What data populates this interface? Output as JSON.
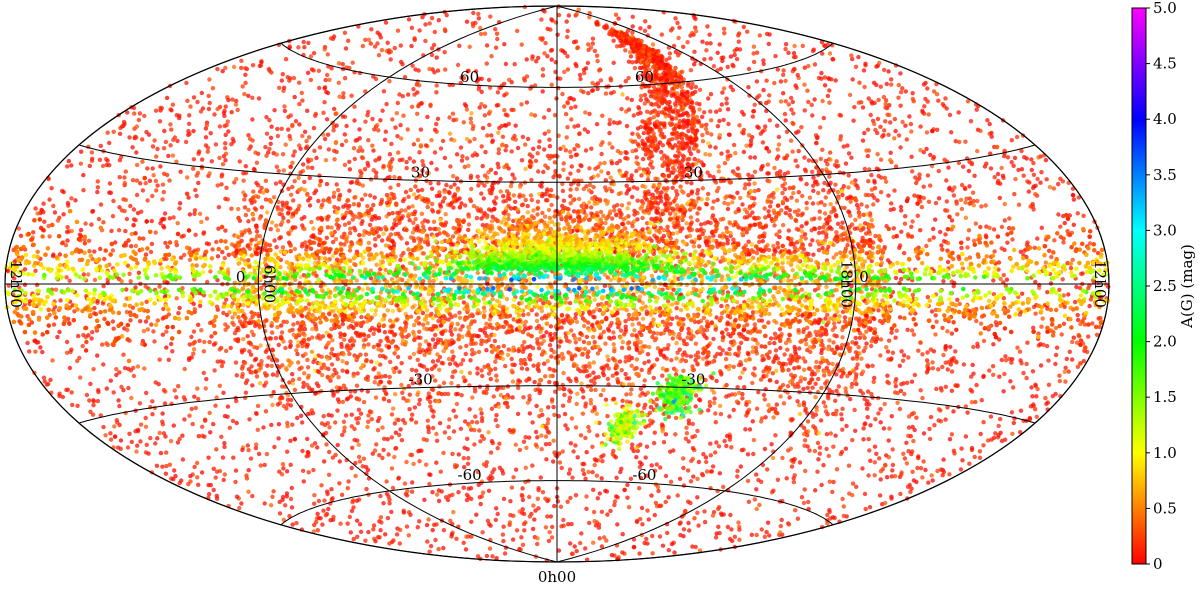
{
  "chart_data": {
    "type": "scatter",
    "projection": "hammer-aitoff",
    "coordinate_system": "galactic",
    "title": "",
    "latitude_ticks": [
      {
        "label": "60",
        "value": 60
      },
      {
        "label": "30",
        "value": 30
      },
      {
        "label": "0",
        "value": 0
      },
      {
        "label": "-30",
        "value": -30
      },
      {
        "label": "-60",
        "value": -60
      }
    ],
    "longitude_ticks": [
      {
        "label": "12h00",
        "value": 180
      },
      {
        "label": "6h00",
        "value": 90
      },
      {
        "label": "0h00",
        "value": 0
      },
      {
        "label": "18h00",
        "value": -90
      },
      {
        "label": "12h00",
        "value": -180
      }
    ],
    "colorbar": {
      "label": "A(G) (mag)",
      "min": 0,
      "max": 5.0,
      "ticks": [
        "0",
        "0.5",
        "1.0",
        "1.5",
        "2.0",
        "2.5",
        "3.0",
        "3.5",
        "4.0",
        "4.5",
        "5.0"
      ],
      "colormap": [
        "#ff0000",
        "#ff8000",
        "#ffff00",
        "#80ff00",
        "#00ff00",
        "#00ff80",
        "#00ffff",
        "#0080ff",
        "#0000ff",
        "#8000ff",
        "#ff00ff"
      ]
    },
    "grid": true,
    "point_color_min_to_max": "red-to-magenta (gist_rainbow_r)",
    "features": [
      {
        "name": "galactic plane band",
        "l_range": [
          -180,
          180
        ],
        "b_center": 0,
        "extinction": "high"
      },
      {
        "name": "central bulge clump",
        "l": 0,
        "b": 5,
        "extinction": "high"
      },
      {
        "name": "southern clump",
        "l": -40,
        "b": -32,
        "extinction": "moderate"
      },
      {
        "name": "southern clump",
        "l": -25,
        "b": -40,
        "extinction": "moderate"
      }
    ]
  }
}
